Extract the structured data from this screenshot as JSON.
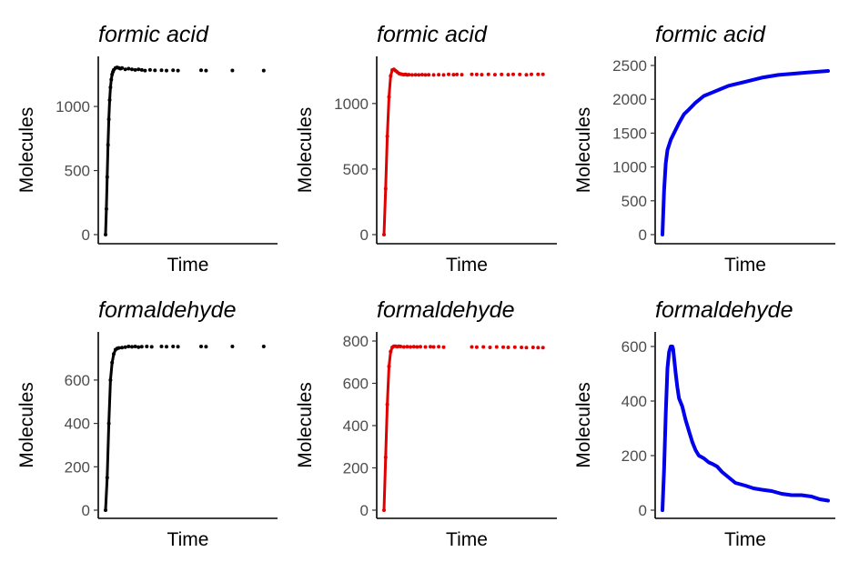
{
  "chart_data": [
    {
      "type": "scatter",
      "title": "formic acid",
      "xlabel": "Time",
      "ylabel": "Molecules",
      "color": "#000000",
      "ylim": [
        0,
        1320
      ],
      "yticks": [
        0,
        500,
        1000
      ],
      "x": [
        0.0,
        0.005,
        0.01,
        0.015,
        0.02,
        0.025,
        0.03,
        0.035,
        0.04,
        0.045,
        0.05,
        0.06,
        0.07,
        0.08,
        0.09,
        0.1,
        0.12,
        0.14,
        0.16,
        0.18,
        0.2,
        0.22,
        0.24,
        0.27,
        0.3,
        0.34,
        0.37,
        0.41,
        0.44,
        0.58,
        0.61,
        0.77,
        0.96
      ],
      "y": [
        0,
        200,
        450,
        700,
        900,
        1050,
        1150,
        1210,
        1250,
        1270,
        1285,
        1300,
        1305,
        1300,
        1295,
        1300,
        1290,
        1295,
        1290,
        1285,
        1290,
        1285,
        1280,
        1285,
        1282,
        1283,
        1280,
        1283,
        1280,
        1283,
        1280,
        1281,
        1280
      ]
    },
    {
      "type": "scatter",
      "title": "formic acid",
      "xlabel": "Time",
      "ylabel": "Molecules",
      "color": "#e00000",
      "ylim": [
        0,
        1290
      ],
      "yticks": [
        0,
        500,
        1000
      ],
      "x": [
        0.0,
        0.01,
        0.02,
        0.03,
        0.04,
        0.05,
        0.06,
        0.07,
        0.08,
        0.09,
        0.1,
        0.11,
        0.12,
        0.13,
        0.14,
        0.15,
        0.17,
        0.19,
        0.21,
        0.23,
        0.25,
        0.27,
        0.3,
        0.33,
        0.36,
        0.39,
        0.42,
        0.44,
        0.47,
        0.53,
        0.56,
        0.59,
        0.63,
        0.67,
        0.71,
        0.75,
        0.78,
        0.82,
        0.86,
        0.89,
        0.93,
        0.96
      ],
      "y": [
        0,
        350,
        750,
        1050,
        1210,
        1255,
        1260,
        1250,
        1240,
        1230,
        1225,
        1222,
        1220,
        1222,
        1218,
        1220,
        1218,
        1219,
        1218,
        1220,
        1218,
        1219,
        1218,
        1220,
        1218,
        1222,
        1220,
        1221,
        1220,
        1222,
        1221,
        1220,
        1222,
        1220,
        1221,
        1220,
        1222,
        1221,
        1219,
        1223,
        1222,
        1223
      ]
    },
    {
      "type": "line",
      "title": "formic acid",
      "xlabel": "Time",
      "ylabel": "Molecules",
      "color": "#0000ee",
      "ylim": [
        0,
        2500
      ],
      "yticks": [
        0,
        500,
        1000,
        1500,
        2000,
        2500
      ],
      "x": [
        0.0,
        0.01,
        0.02,
        0.03,
        0.05,
        0.07,
        0.1,
        0.13,
        0.16,
        0.2,
        0.25,
        0.3,
        0.35,
        0.4,
        0.5,
        0.6,
        0.7,
        0.8,
        0.9,
        1.0
      ],
      "y": [
        0,
        650,
        1050,
        1250,
        1400,
        1500,
        1650,
        1780,
        1850,
        1950,
        2050,
        2100,
        2150,
        2200,
        2260,
        2320,
        2360,
        2380,
        2400,
        2420
      ]
    },
    {
      "type": "scatter",
      "title": "formaldehyde",
      "xlabel": "Time",
      "ylabel": "Molecules",
      "color": "#000000",
      "ylim": [
        0,
        780
      ],
      "yticks": [
        0,
        200,
        400,
        600
      ],
      "x": [
        0.0,
        0.01,
        0.02,
        0.03,
        0.04,
        0.05,
        0.06,
        0.07,
        0.08,
        0.1,
        0.12,
        0.14,
        0.16,
        0.18,
        0.2,
        0.22,
        0.25,
        0.28,
        0.34,
        0.37,
        0.41,
        0.44,
        0.58,
        0.61,
        0.77,
        0.96
      ],
      "y": [
        0,
        150,
        400,
        600,
        680,
        720,
        740,
        745,
        748,
        750,
        752,
        755,
        753,
        755,
        752,
        754,
        755,
        753,
        755,
        754,
        755,
        754,
        755,
        754,
        755,
        755
      ]
    },
    {
      "type": "scatter",
      "title": "formaldehyde",
      "xlabel": "Time",
      "ylabel": "Molecules",
      "color": "#e00000",
      "ylim": [
        0,
        800
      ],
      "yticks": [
        0,
        200,
        400,
        600,
        800
      ],
      "x": [
        0.0,
        0.01,
        0.02,
        0.03,
        0.04,
        0.05,
        0.06,
        0.07,
        0.08,
        0.09,
        0.1,
        0.12,
        0.14,
        0.16,
        0.18,
        0.2,
        0.22,
        0.25,
        0.28,
        0.3,
        0.33,
        0.36,
        0.53,
        0.56,
        0.6,
        0.64,
        0.68,
        0.72,
        0.75,
        0.79,
        0.83,
        0.86,
        0.9,
        0.93,
        0.96
      ],
      "y": [
        0,
        250,
        500,
        680,
        750,
        770,
        775,
        775,
        773,
        775,
        774,
        772,
        773,
        772,
        773,
        772,
        773,
        772,
        773,
        772,
        773,
        771,
        772,
        771,
        772,
        770,
        772,
        771,
        770,
        771,
        770,
        769,
        770,
        769,
        769
      ]
    },
    {
      "type": "line",
      "title": "formaldehyde",
      "xlabel": "Time",
      "ylabel": "Molecules",
      "color": "#0000ee",
      "ylim": [
        0,
        620
      ],
      "yticks": [
        0,
        200,
        400,
        600
      ],
      "x": [
        0.0,
        0.01,
        0.02,
        0.03,
        0.04,
        0.05,
        0.06,
        0.065,
        0.07,
        0.08,
        0.09,
        0.1,
        0.12,
        0.14,
        0.16,
        0.18,
        0.2,
        0.22,
        0.25,
        0.28,
        0.3,
        0.33,
        0.36,
        0.4,
        0.44,
        0.5,
        0.55,
        0.6,
        0.66,
        0.72,
        0.78,
        0.84,
        0.9,
        0.95,
        1.0
      ],
      "y": [
        0,
        150,
        350,
        520,
        580,
        600,
        600,
        590,
        560,
        500,
        450,
        410,
        380,
        330,
        290,
        250,
        220,
        200,
        190,
        175,
        170,
        160,
        140,
        120,
        100,
        90,
        80,
        75,
        70,
        60,
        55,
        55,
        50,
        40,
        35
      ]
    }
  ]
}
